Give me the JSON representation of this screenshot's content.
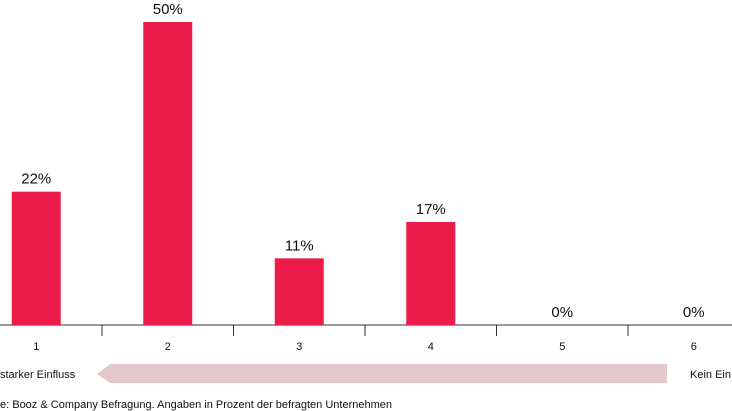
{
  "chart_data": {
    "type": "bar",
    "categories": [
      "1",
      "2",
      "3",
      "4",
      "5",
      "6"
    ],
    "values": [
      22,
      50,
      11,
      17,
      0,
      0
    ],
    "value_labels": [
      "22%",
      "50%",
      "11%",
      "17%",
      "0%",
      "0%"
    ],
    "color": "#ec1c4a",
    "left_label": "starker Einfluss",
    "right_label": "Kein Ein",
    "source": "e: Booz & Company Befragung. Angaben in Prozent der befragten Unternehmen"
  }
}
